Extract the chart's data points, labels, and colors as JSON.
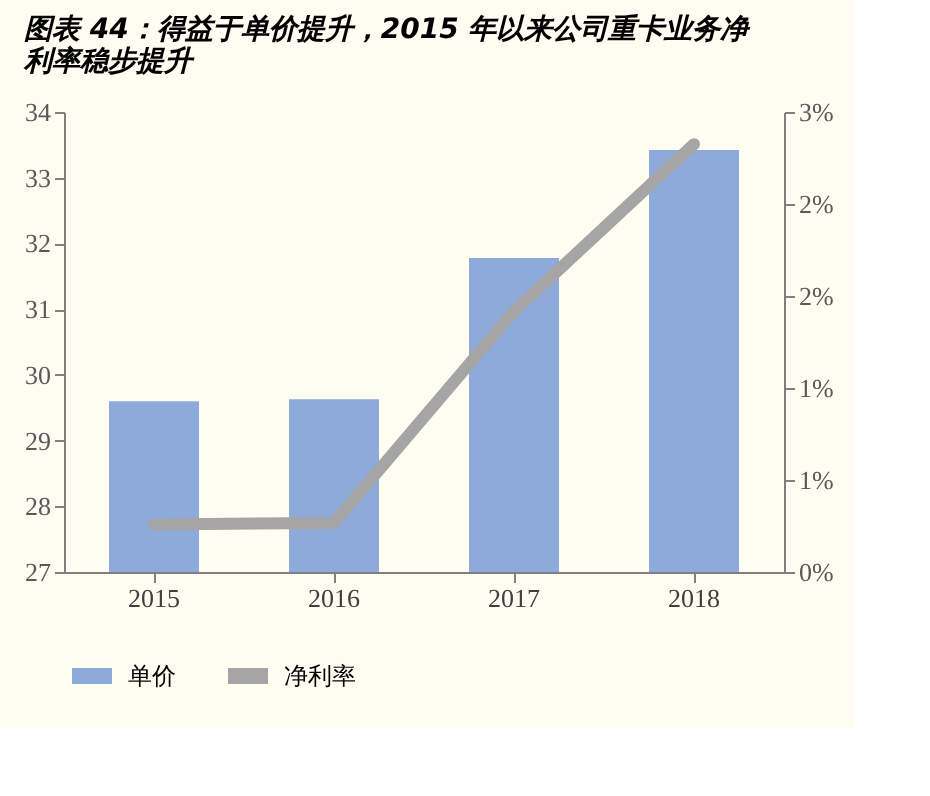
{
  "chart_data": {
    "type": "bar",
    "title": [
      "图表 44：得益于单价提升，2015 年以来公司重卡业务净",
      "利率稳步提升"
    ],
    "categories": [
      "2015",
      "2016",
      "2017",
      "2018"
    ],
    "series": [
      {
        "name": "单价",
        "color": "#8eaadb",
        "values": [
          29.6,
          29.63,
          31.78,
          33.42
        ]
      },
      {
        "name": "净利率",
        "type": "line",
        "axis": "y2",
        "color": "#a5a5a5",
        "values": [
          0.31,
          0.32,
          1.7,
          2.79
        ]
      }
    ],
    "ylim": [
      27,
      34
    ],
    "yticks": [
      27,
      28,
      29,
      30,
      31,
      32,
      33,
      34
    ],
    "y2lim": [
      0,
      3
    ],
    "y2ticks": [
      {
        "value": 0,
        "label": "0%"
      },
      {
        "value": 0.6,
        "label": "1%"
      },
      {
        "value": 1.2,
        "label": "1%"
      },
      {
        "value": 1.8,
        "label": "2%"
      },
      {
        "value": 2.4,
        "label": "2%"
      },
      {
        "value": 3,
        "label": "3%"
      }
    ],
    "grid": false,
    "legend": "bottom",
    "line_style": "solid"
  }
}
